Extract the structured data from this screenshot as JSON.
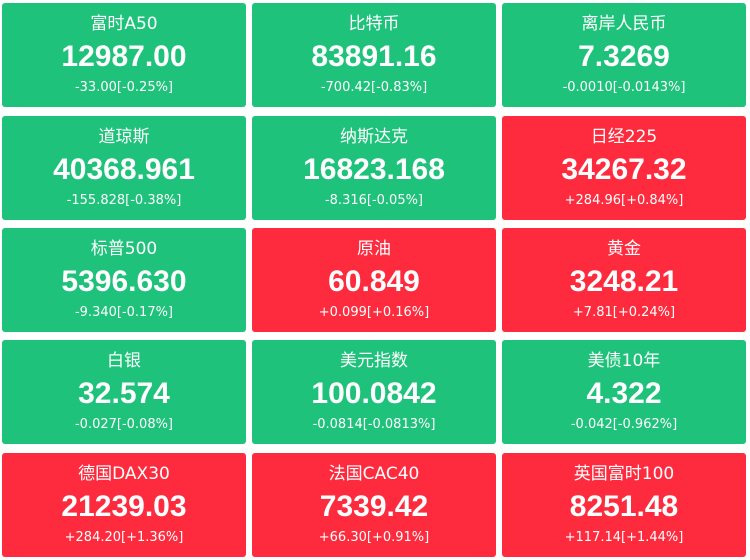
{
  "colors": {
    "down": "#1ec27a",
    "up": "#fd2b3d",
    "text": "#ffffff"
  },
  "tiles": [
    {
      "name": "富时A50",
      "price": "12987.00",
      "change": "-33.00[-0.25%]",
      "direction": "down"
    },
    {
      "name": "比特币",
      "price": "83891.16",
      "change": "-700.42[-0.83%]",
      "direction": "down"
    },
    {
      "name": "离岸人民币",
      "price": "7.3269",
      "change": "-0.0010[-0.0143%]",
      "direction": "down"
    },
    {
      "name": "道琼斯",
      "price": "40368.961",
      "change": "-155.828[-0.38%]",
      "direction": "down"
    },
    {
      "name": "纳斯达克",
      "price": "16823.168",
      "change": "-8.316[-0.05%]",
      "direction": "down"
    },
    {
      "name": "日经225",
      "price": "34267.32",
      "change": "+284.96[+0.84%]",
      "direction": "up"
    },
    {
      "name": "标普500",
      "price": "5396.630",
      "change": "-9.340[-0.17%]",
      "direction": "down"
    },
    {
      "name": "原油",
      "price": "60.849",
      "change": "+0.099[+0.16%]",
      "direction": "up"
    },
    {
      "name": "黄金",
      "price": "3248.21",
      "change": "+7.81[+0.24%]",
      "direction": "up"
    },
    {
      "name": "白银",
      "price": "32.574",
      "change": "-0.027[-0.08%]",
      "direction": "down"
    },
    {
      "name": "美元指数",
      "price": "100.0842",
      "change": "-0.0814[-0.0813%]",
      "direction": "down"
    },
    {
      "name": "美债10年",
      "price": "4.322",
      "change": "-0.042[-0.962%]",
      "direction": "down"
    },
    {
      "name": "德国DAX30",
      "price": "21239.03",
      "change": "+284.20[+1.36%]",
      "direction": "up"
    },
    {
      "name": "法国CAC40",
      "price": "7339.42",
      "change": "+66.30[+0.91%]",
      "direction": "up"
    },
    {
      "name": "英国富时100",
      "price": "8251.48",
      "change": "+117.14[+1.44%]",
      "direction": "up"
    }
  ]
}
